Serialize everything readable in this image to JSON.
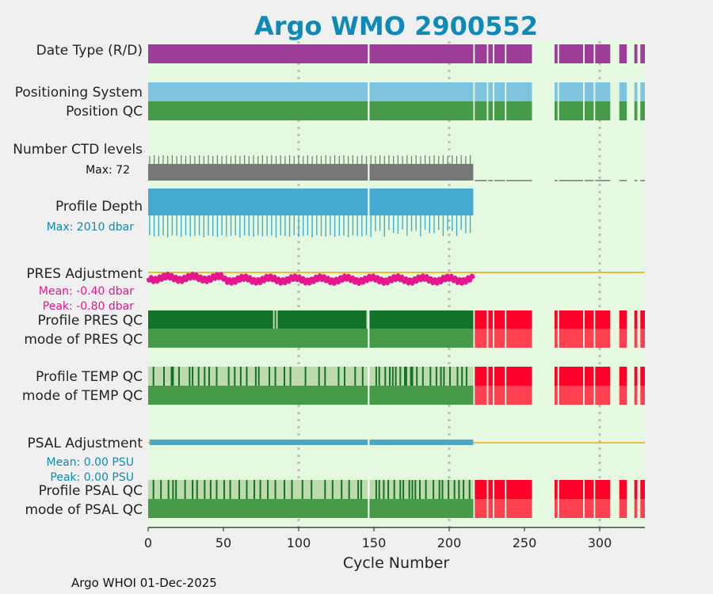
{
  "colors": {
    "page_bg": "#f0f0f0",
    "plot_bg": "#e4f9e0",
    "title": "#0e8ab8",
    "purple": "#9b3d99",
    "light_blue": "#7ec4df",
    "green": "#479a47",
    "dark_green": "#127227",
    "pale_green": "#bddaad",
    "gray": "#777777",
    "blue": "#44aad0",
    "magenta": "#e5168e",
    "orange": "#f0b942",
    "red": "#ff0028",
    "light_red": "#ff4050",
    "grid": "#bbbbbb",
    "white": "#ffffff"
  },
  "chart_data": {
    "type": "bar",
    "title": "Argo WMO 2900552",
    "xlabel": "Cycle Number",
    "xlim": [
      0,
      330
    ],
    "xticks": [
      0,
      50,
      100,
      150,
      200,
      250,
      300
    ],
    "grid_x": [
      100,
      200,
      300
    ],
    "cycle_groups": [
      [
        0,
        146
      ],
      [
        147,
        216
      ],
      [
        217,
        225
      ],
      [
        226,
        229
      ],
      [
        230,
        237
      ],
      [
        238,
        255
      ],
      [
        270,
        272
      ],
      [
        273,
        289
      ],
      [
        290,
        296
      ],
      [
        297,
        307
      ],
      [
        313,
        318
      ],
      [
        323,
        325
      ],
      [
        327,
        330
      ]
    ],
    "cycle_white_gaps": [
      146.5
    ],
    "rows": [
      {
        "key": "date_type",
        "label": "Date Type (R/D)"
      },
      {
        "key": "positioning_system",
        "label": "Positioning System"
      },
      {
        "key": "position_qc",
        "label": "Position QC"
      },
      {
        "key": "ctd_levels",
        "label": "Number CTD levels",
        "max_label": "Max: 72",
        "max_value": 72
      },
      {
        "key": "profile_depth",
        "label": "Profile Depth",
        "max_label": "Max: 2010 dbar",
        "max_value": 2010
      },
      {
        "key": "pres_adjustment",
        "label": "PRES Adjustment",
        "mean_label": "Mean: -0.40 dbar",
        "peak_label": "Peak: -0.80 dbar",
        "mean": -0.4,
        "peak": -0.8
      },
      {
        "key": "profile_pres_qc",
        "label": "Profile PRES QC"
      },
      {
        "key": "mode_pres_qc",
        "label": "mode of PRES QC"
      },
      {
        "key": "profile_temp_qc",
        "label": "Profile TEMP QC"
      },
      {
        "key": "mode_temp_qc",
        "label": "mode of TEMP QC"
      },
      {
        "key": "psal_adjustment",
        "label": "PSAL Adjustment",
        "mean_label": "Mean: 0.00 PSU",
        "peak_label": "Peak: 0.00 PSU",
        "mean": 0.0,
        "peak": 0.0
      },
      {
        "key": "profile_psal_qc",
        "label": "Profile PSAL QC"
      },
      {
        "key": "mode_psal_qc",
        "label": "mode of PSAL QC"
      }
    ],
    "last_cycle_with_profile_data": 216,
    "profile_pres_qc_light_cycles": [
      83,
      85,
      145
    ],
    "temp_qc_dark_cycles": [
      3,
      10,
      15,
      16,
      20,
      27,
      29,
      33,
      37,
      40,
      45,
      53,
      57,
      61,
      65,
      71,
      73,
      80,
      84,
      90,
      94,
      104,
      113,
      117,
      126,
      130,
      137,
      142,
      151,
      153,
      157,
      160,
      162,
      164,
      167,
      170,
      171,
      174,
      175,
      178,
      182,
      187,
      191,
      194,
      196,
      200,
      205,
      208,
      211
    ],
    "psal_qc_dark_cycles": [
      3,
      8,
      13,
      16,
      18,
      24,
      29,
      32,
      37,
      41,
      45,
      50,
      54,
      60,
      65,
      70,
      74,
      79,
      84,
      90,
      95,
      102,
      108,
      117,
      122,
      128,
      133,
      139,
      141,
      151,
      153,
      156,
      159,
      163,
      167,
      169,
      173,
      175,
      177,
      180,
      184,
      189,
      193,
      195,
      199,
      203,
      206,
      209,
      213
    ]
  },
  "footer": "Argo WHOI 01-Dec-2025"
}
